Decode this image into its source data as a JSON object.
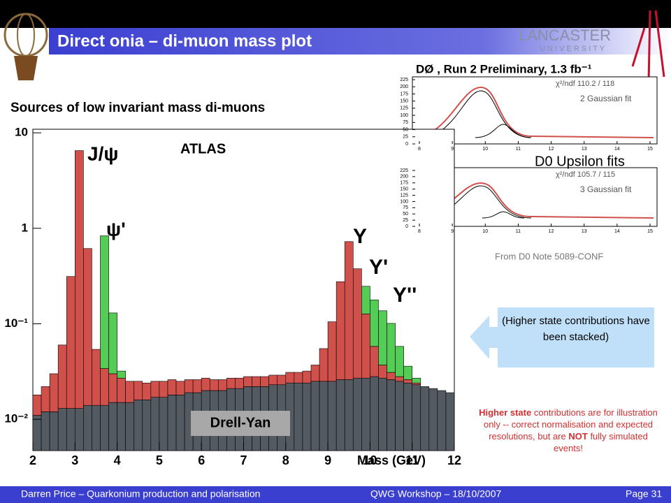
{
  "header": {
    "title": "Direct onia – di-muon mass plot",
    "logo_text": [
      "LANCASTER",
      "U N I V E R S I T Y"
    ]
  },
  "chart_data": {
    "type": "histogram",
    "title": "Sources of low invariant mass di-muons",
    "x_label": "Mass (GeV)",
    "bins": [
      2.0,
      2.2,
      2.4,
      2.6,
      2.8,
      3.0,
      3.2,
      3.4,
      3.6,
      3.8,
      4.0,
      4.2,
      4.4,
      4.6,
      4.8,
      5.0,
      5.2,
      5.4,
      5.6,
      5.8,
      6.0,
      6.2,
      6.4,
      6.6,
      6.8,
      7.0,
      7.2,
      7.4,
      7.6,
      7.8,
      8.0,
      8.2,
      8.4,
      8.6,
      8.8,
      9.0,
      9.2,
      9.4,
      9.6,
      9.8,
      10.0,
      10.2,
      10.4,
      10.6,
      10.8,
      11.0,
      11.2,
      11.4,
      11.6,
      11.8,
      12.0
    ],
    "series": [
      {
        "name": "Drell-Yan",
        "color": "#545a62",
        "values": [
          0.011,
          0.012,
          0.012,
          0.013,
          0.013,
          0.013,
          0.014,
          0.014,
          0.014,
          0.015,
          0.015,
          0.015,
          0.016,
          0.016,
          0.017,
          0.017,
          0.018,
          0.018,
          0.019,
          0.019,
          0.02,
          0.02,
          0.02,
          0.021,
          0.021,
          0.022,
          0.022,
          0.022,
          0.023,
          0.023,
          0.024,
          0.024,
          0.024,
          0.025,
          0.025,
          0.025,
          0.026,
          0.026,
          0.027,
          0.027,
          0.028,
          0.027,
          0.026,
          0.025,
          0.024,
          0.023,
          0.022,
          0.021,
          0.02,
          0.019
        ]
      },
      {
        "color": "#d0504c",
        "values": [
          0.007,
          0.01,
          0.018,
          0.047,
          0.3,
          6.5,
          0.6,
          0.04,
          0.02,
          0.015,
          0.012,
          0.01,
          0.009,
          0.008,
          0.008,
          0.008,
          0.008,
          0.007,
          0.007,
          0.007,
          0.007,
          0.006,
          0.006,
          0.006,
          0.006,
          0.006,
          0.006,
          0.006,
          0.006,
          0.006,
          0.007,
          0.007,
          0.008,
          0.012,
          0.03,
          0.08,
          0.25,
          0.7,
          0.35,
          0.1,
          0.03,
          0.01,
          0.005,
          0.003,
          0.002,
          0.001,
          0,
          0,
          0,
          0
        ]
      },
      {
        "color": "#55cc55",
        "values": [
          0,
          0,
          0,
          0,
          0,
          0,
          0,
          0,
          0.8,
          0.1,
          0.005,
          0,
          0,
          0,
          0,
          0,
          0,
          0,
          0,
          0,
          0,
          0,
          0,
          0,
          0,
          0,
          0,
          0,
          0,
          0,
          0,
          0,
          0,
          0,
          0,
          0,
          0,
          0,
          0,
          0.12,
          0.12,
          0.1,
          0.07,
          0.03,
          0.01,
          0.003,
          0,
          0,
          0,
          0
        ]
      }
    ],
    "xlim": [
      2,
      12
    ],
    "xticks": [
      2,
      3,
      4,
      5,
      6,
      7,
      8,
      9,
      10,
      11,
      12
    ],
    "ylim": [
      0.0047,
      10.9
    ],
    "log_scale": true,
    "yticks": [
      {
        "value": 0.01,
        "label": "10⁻²"
      },
      {
        "value": 0.1,
        "label": "10⁻¹"
      },
      1,
      10
    ],
    "annotations": [
      "J/ψ",
      "ψ'",
      "ATLAS",
      "Υ",
      "Υ'",
      "Υ''"
    ]
  },
  "inset": {
    "title": "DØ , Run 2 Preliminary, 1.3 fb⁻¹",
    "yticks": [
      0,
      25,
      50,
      75,
      100,
      125,
      150,
      175,
      200,
      225
    ],
    "xticks": [
      8,
      9,
      10,
      11,
      12,
      13,
      14,
      15
    ],
    "panels": [
      {
        "chi2": "χ²/ndf   110.2  /  118",
        "fit": "2 Gaussian fit"
      },
      {
        "chi2": "χ²/ndf   105.7  /  115",
        "fit": "3 Gaussian fit"
      }
    ],
    "label": "D0 Upsilon fits",
    "source": "From D0 Note 5089-CONF"
  },
  "callout": "(Higher state contributions have been stacked)",
  "note": [
    {
      "text": "Higher state",
      "bold": true
    },
    {
      "text": " contributions are for illustration only -- correct normalisation and expected resolutions, but are ",
      "bold": false
    },
    {
      "text": "NOT",
      "bold": true
    },
    {
      "text": " fully simulated events!",
      "bold": false
    }
  ],
  "footer": {
    "left": "Darren Price – Quarkonium production and polarisation",
    "middle": "QWG Workshop – 18/10/2007",
    "right": "Page 31"
  }
}
